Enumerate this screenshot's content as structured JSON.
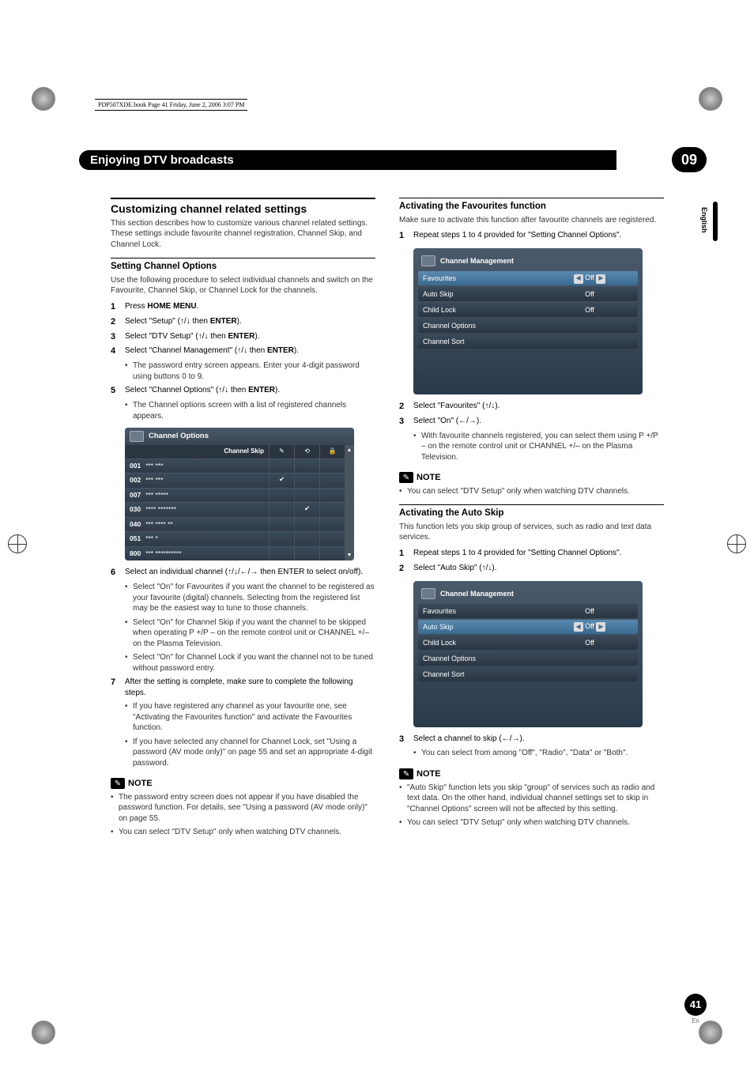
{
  "header_line": "PDP507XDE.book  Page 41  Friday, June 2, 2006  3:07 PM",
  "chapter_title": "Enjoying DTV broadcasts",
  "chapter_num": "09",
  "lang_tab": "English",
  "page_number": "41",
  "page_lang": "En",
  "left": {
    "h2": "Customizing channel related settings",
    "intro": "This section describes how to customize various channel related settings. These settings include favourite channel registration, Channel Skip, and Channel Lock.",
    "h3_1": "Setting Channel Options",
    "p1": "Use the following procedure to select individual channels and switch on the Favourite, Channel Skip, or Channel Lock for the channels.",
    "steps1": [
      {
        "n": "1",
        "t_pre": "Press ",
        "t_b": "HOME MENU",
        "t_post": "."
      },
      {
        "n": "2",
        "t_pre": "Select \"Setup\" (",
        "arrows": true,
        "t_mid": " then ",
        "t_b": "ENTER",
        "t_post": ")."
      },
      {
        "n": "3",
        "t_pre": "Select \"DTV Setup\" (",
        "arrows": true,
        "t_mid": " then ",
        "t_b": "ENTER",
        "t_post": ")."
      },
      {
        "n": "4",
        "t_pre": "Select \"Channel Management\" (",
        "arrows": true,
        "t_mid": " then ",
        "t_b": "ENTER",
        "t_post": ")."
      }
    ],
    "step4_sub": "The password entry screen appears. Enter your 4-digit password using buttons 0 to 9.",
    "step5": {
      "n": "5",
      "t_pre": "Select \"Channel Options\" (",
      "arrows": true,
      "t_mid": " then ",
      "t_b": "ENTER",
      "t_post": ")."
    },
    "step5_sub": "The Channel options screen with a list of registered channels appears.",
    "ch_table": {
      "title": "Channel Options",
      "header": {
        "skip": "Channel Skip",
        "pencil": "✎",
        "favorite": "⟲",
        "lock": "🔒"
      },
      "rows": [
        {
          "num": "001",
          "name": "*** ***",
          "c2": "",
          "c3": "",
          "c4": ""
        },
        {
          "num": "002",
          "name": "*** ***",
          "c2": "✔",
          "c3": "",
          "c4": ""
        },
        {
          "num": "007",
          "name": "*** *****",
          "c2": "",
          "c3": "",
          "c4": ""
        },
        {
          "num": "030",
          "name": "**** *******",
          "c2": "",
          "c3": "✔",
          "c4": ""
        },
        {
          "num": "040",
          "name": "*** **** **",
          "c2": "",
          "c3": "",
          "c4": ""
        },
        {
          "num": "051",
          "name": "*** *",
          "c2": "",
          "c3": "",
          "c4": ""
        },
        {
          "num": "800",
          "name": "*** **********",
          "c2": "",
          "c3": "",
          "c4": ""
        }
      ]
    },
    "step6": {
      "n": "6",
      "t": "Select an individual channel (↑/↓/←/→ then ENTER to select on/off)."
    },
    "step6_bullets": [
      "Select \"On\" for Favourites if you want the channel to be registered as your favourite (digital) channels. Selecting from the registered list may be the easiest way to tune to those channels.",
      "Select \"On\" for Channel Skip if you want the channel to be skipped when operating P +/P – on the remote control unit or CHANNEL +/– on the Plasma Television.",
      "Select \"On\" for Channel Lock if you want the channel not to be tuned without password entry."
    ],
    "step7": {
      "n": "7",
      "t": "After the setting is complete, make sure to complete the following steps."
    },
    "step7_bullets": [
      "If you have registered any channel as your favourite one, see \"Activating the Favourites function\" and activate the Favourites function.",
      "If you have selected any channel for Channel Lock, set \"Using a password (AV mode only)\" on page 55 and set an appropriate 4-digit password."
    ],
    "note_label": "NOTE",
    "notes": [
      "The password entry screen does not appear if you have disabled the password function. For details, see \"Using a password (AV mode only)\" on page 55.",
      "You can select \"DTV Setup\" only when watching DTV channels."
    ]
  },
  "right": {
    "h3_1": "Activating the Favourites function",
    "p1": "Make sure to activate this function after favourite channels are registered.",
    "step1": {
      "n": "1",
      "t": "Repeat steps 1 to 4 provided for \"Setting Channel Options\"."
    },
    "menu1": {
      "title": "Channel Management",
      "rows": [
        {
          "label": "Favourites",
          "val": "Off",
          "sel": true,
          "arrows": true
        },
        {
          "label": "Auto Skip",
          "val": "Off"
        },
        {
          "label": "Child Lock",
          "val": "Off"
        },
        {
          "label": "Channel Options",
          "val": ""
        },
        {
          "label": "Channel Sort",
          "val": ""
        }
      ]
    },
    "step2": {
      "n": "2",
      "t": "Select \"Favourites\" (↑/↓)."
    },
    "step3": {
      "n": "3",
      "t": "Select \"On\" (←/→)."
    },
    "step3_sub": "With favourite channels registered, you can select them using P +/P – on the remote control unit or CHANNEL +/– on the Plasma Television.",
    "note_label": "NOTE",
    "notes1": [
      "You can select \"DTV Setup\" only when watching DTV channels."
    ],
    "h3_2": "Activating the Auto Skip",
    "p2": "This function lets you skip group of services, such as radio and text data services.",
    "step1b": {
      "n": "1",
      "t": "Repeat steps 1 to 4 provided for \"Setting Channel Options\"."
    },
    "step2b": {
      "n": "2",
      "t": "Select \"Auto Skip\" (↑/↓)."
    },
    "menu2": {
      "title": "Channel Management",
      "rows": [
        {
          "label": "Favourites",
          "val": "Off"
        },
        {
          "label": "Auto Skip",
          "val": "Off",
          "sel": true,
          "arrows": true
        },
        {
          "label": "Child Lock",
          "val": "Off"
        },
        {
          "label": "Channel Options",
          "val": ""
        },
        {
          "label": "Channel Sort",
          "val": ""
        }
      ]
    },
    "step3b": {
      "n": "3",
      "t": "Select a channel to skip (←/→)."
    },
    "step3b_sub": "You can select from among \"Off\", \"Radio\", \"Data\" or \"Both\".",
    "notes2": [
      "\"Auto Skip\" function lets you skip \"group\" of services such as radio and text data. On the other hand, individual channel settings set to skip in \"Channel Options\" screen will not be affected by this setting.",
      "You can select \"DTV Setup\" only when watching DTV channels."
    ]
  }
}
